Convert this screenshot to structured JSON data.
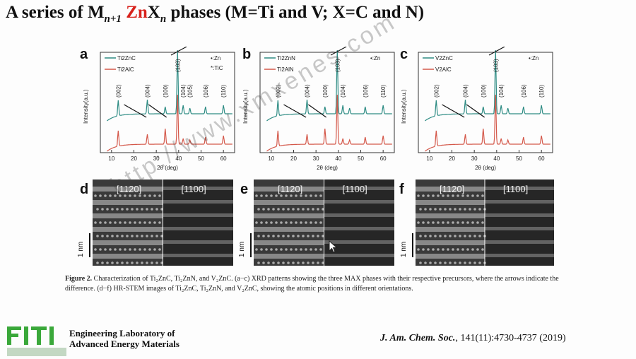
{
  "title": {
    "prefix": "A series of M",
    "sub1": "n+1",
    "red": "Zn",
    "x": "X",
    "sub2": "n",
    "suffix": " phases (M=Ti and V; X=C and N)"
  },
  "panels": [
    {
      "letter": "a",
      "legend_top": "Ti2ZnC",
      "legend_bottom": "Ti2AlC",
      "markers": [
        "•:Zn",
        "*:TiC"
      ]
    },
    {
      "letter": "b",
      "legend_top": "Ti2ZnN",
      "legend_bottom": "Ti2AlN",
      "markers": [
        "•:Zn"
      ]
    },
    {
      "letter": "c",
      "legend_top": "V2ZnC",
      "legend_bottom": "V2AlC",
      "markers": [
        "•:Zn"
      ]
    }
  ],
  "xrd_axis": {
    "ylabel": "Intensity(a.u.)",
    "xlabel": "2θ (deg)",
    "xticks": [
      "10",
      "20",
      "30",
      "40",
      "50",
      "60"
    ]
  },
  "peak_labels": [
    "(002)",
    "(004)",
    "(100)",
    "(103)",
    "(104)",
    "(105)",
    "(106)",
    "(110)"
  ],
  "stem_panels": [
    {
      "letter": "d",
      "left_label": "[1120]",
      "right_label": "[1100]",
      "scale": "1 nm"
    },
    {
      "letter": "e",
      "left_label": "[1120]",
      "right_label": "[1100]",
      "scale": "1 nm"
    },
    {
      "letter": "f",
      "left_label": "[1120]",
      "right_label": "[1100]",
      "scale": "1 nm"
    }
  ],
  "caption": {
    "figure": "Figure 2.",
    "text": " Characterization of Ti₂ZnC, Ti₂ZnN, and V₂ZnC. (a−c) XRD patterns showing the three MAX phases with their respective precursors, where the arrows indicate the difference. (d−f) HR-STEM images of Ti₂ZnC, Ti₂ZnN, and V₂ZnC, showing the atomic positions in different orientations."
  },
  "lab": {
    "line1": "Engineering Laboratory of",
    "line2": "Advanced Energy Materials"
  },
  "citation": {
    "journal": "J. Am. Chem. Soc.",
    "ref": ", 141(11):4730-4737 (2019)"
  },
  "watermark": "http://www.xmxenes.com",
  "colors": {
    "teal": "#2e8c84",
    "red_line": "#d4584a",
    "title_red": "#d8221c"
  }
}
